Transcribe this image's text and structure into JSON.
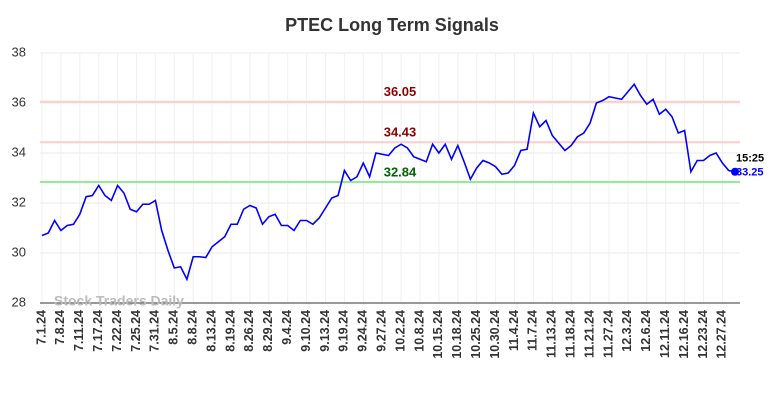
{
  "chart_data": {
    "type": "line",
    "title": "PTEC Long Term Signals",
    "categories": [
      "7.1.24",
      null,
      null,
      "7.8.24",
      null,
      null,
      "7.11.24",
      null,
      null,
      "7.17.24",
      null,
      null,
      "7.22.24",
      null,
      null,
      "7.25.24",
      null,
      null,
      "7.31.24",
      null,
      null,
      "8.5.24",
      null,
      null,
      "8.8.24",
      null,
      null,
      "8.13.24",
      null,
      null,
      "8.19.24",
      null,
      null,
      "8.26.24",
      null,
      null,
      "8.29.24",
      null,
      null,
      "9.4.24",
      null,
      null,
      "9.10.24",
      null,
      null,
      "9.13.24",
      null,
      null,
      "9.19.24",
      null,
      null,
      "9.24.24",
      null,
      null,
      "9.27.24",
      null,
      null,
      "10.2.24",
      null,
      null,
      "10.8.24",
      null,
      null,
      "10.15.24",
      null,
      null,
      "10.18.24",
      null,
      null,
      "10.25.24",
      null,
      null,
      "10.30.24",
      null,
      null,
      "11.4.24",
      null,
      null,
      "11.7.24",
      null,
      null,
      "11.13.24",
      null,
      null,
      "11.18.24",
      null,
      null,
      "11.21.24",
      null,
      null,
      "11.27.24",
      null,
      null,
      "12.3.24",
      null,
      null,
      "12.6.24",
      null,
      null,
      "12.11.24",
      null,
      null,
      "12.16.24",
      null,
      null,
      "12.23.24",
      null,
      null,
      "12.27.24",
      null,
      null
    ],
    "values": [
      30.7,
      30.8,
      31.3,
      30.9,
      31.1,
      31.15,
      31.55,
      32.25,
      32.3,
      32.7,
      32.3,
      32.1,
      32.7,
      32.4,
      31.75,
      31.65,
      31.95,
      31.95,
      32.1,
      30.9,
      30.1,
      29.4,
      29.45,
      28.95,
      29.85,
      29.85,
      29.82,
      30.25,
      30.45,
      30.65,
      31.15,
      31.15,
      31.75,
      31.9,
      31.8,
      31.15,
      31.45,
      31.55,
      31.1,
      31.1,
      30.9,
      31.3,
      31.3,
      31.15,
      31.4,
      31.8,
      32.2,
      32.3,
      33.3,
      32.9,
      33.05,
      33.6,
      33.05,
      34.0,
      33.95,
      33.9,
      34.2,
      34.35,
      34.2,
      33.85,
      33.75,
      33.65,
      34.35,
      34.0,
      34.35,
      33.75,
      34.3,
      33.65,
      32.95,
      33.4,
      33.7,
      33.6,
      33.45,
      33.15,
      33.2,
      33.5,
      34.1,
      34.15,
      35.6,
      35.05,
      35.3,
      34.7,
      34.4,
      34.1,
      34.3,
      34.65,
      34.8,
      35.2,
      36.0,
      36.1,
      36.25,
      36.2,
      36.15,
      36.45,
      36.75,
      36.3,
      35.95,
      36.15,
      35.55,
      35.75,
      35.45,
      34.8,
      34.9,
      33.25,
      33.7,
      33.7,
      33.9,
      34.0,
      33.6,
      33.3,
      33.25
    ],
    "color": "#0000ff",
    "hlines": [
      {
        "value": 36.05,
        "color": "#ffcccc",
        "label_color": "#8b0000"
      },
      {
        "value": 34.43,
        "color": "#ffcccc",
        "label_color": "#8b0000"
      },
      {
        "value": 32.84,
        "color": "#90ee90",
        "label_color": "#006400"
      }
    ],
    "last_time": "15:25",
    "watermark": "Stock Traders Daily",
    "ylim": [
      28,
      38
    ],
    "yticks": [
      28,
      30,
      32,
      34,
      36,
      38
    ],
    "grid": true
  }
}
